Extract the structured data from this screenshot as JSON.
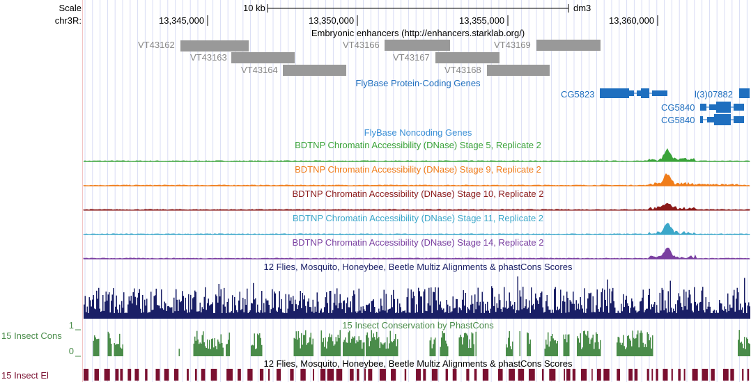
{
  "ruler": {
    "scale_label": "Scale",
    "chrom_label": "chr3R:",
    "scalebar_label": "10 kb",
    "assembly": "dm3",
    "positions": [
      "13,345,000",
      "13,350,000",
      "13,355,000",
      "13,360,000"
    ]
  },
  "tracks": {
    "enhancers": {
      "title": "Embryonic enhancers (http://enhancers.starklab.org/)",
      "color": "#999999",
      "items": [
        "VT43162",
        "VT43163",
        "VT43164",
        "VT43166",
        "VT43167",
        "VT43168",
        "VT43169"
      ]
    },
    "flybase_coding": {
      "title": "FlyBase Protein-Coding Genes",
      "color": "#1f6fbf",
      "genes": [
        "CG5823",
        "l(3)07882",
        "CG5840",
        "CG5840"
      ]
    },
    "flybase_noncoding": {
      "title": "FlyBase Noncoding Genes",
      "color": "#3b8fd6"
    },
    "dnase": [
      {
        "title": "BDTNP Chromatin Accessibility (DNase) Stage 5, Replicate 2",
        "color": "#3aa33a"
      },
      {
        "title": "BDTNP Chromatin Accessibility (DNase) Stage 9, Replicate 2",
        "color": "#f07d1a"
      },
      {
        "title": "BDTNP Chromatin Accessibility (DNase) Stage 10, Replicate 2",
        "color": "#8b1a1a"
      },
      {
        "title": "BDTNP Chromatin Accessibility (DNase) Stage 11, Replicate 2",
        "color": "#3ba7c9"
      },
      {
        "title": "BDTNP Chromatin Accessibility (DNase) Stage 14, Replicate 2",
        "color": "#7a3fa0"
      }
    ],
    "multiz": {
      "title": "12 Flies, Mosquito, Honeybee, Beetle Multiz Alignments & phastCons Scores",
      "color": "#1a1f66"
    },
    "phastcons": {
      "title": "15 Insect Conservation by PhastCons",
      "side_label": "15 Insect Cons",
      "axis_max": "1",
      "axis_min": "0",
      "color": "#4a8c4a"
    },
    "elements": {
      "title": "12 Flies, Mosquito, Honeybee, Beetle Multiz Alignments & phastCons Scores",
      "side_label": "15 Insect El",
      "color": "#7a1030"
    }
  }
}
